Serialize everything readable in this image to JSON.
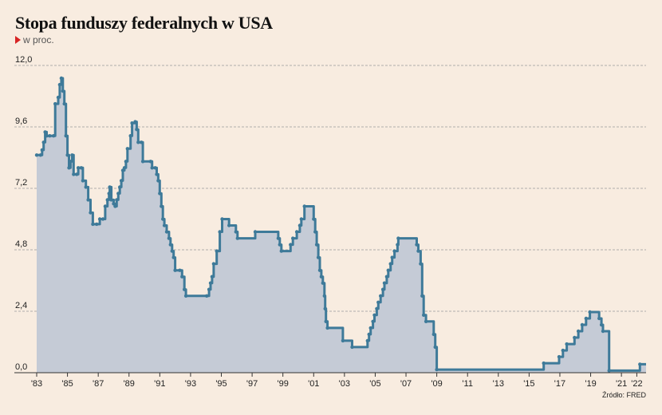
{
  "header": {
    "title": "Stopa funduszy federalnych w USA",
    "subtitle": "w proc."
  },
  "footer": {
    "source": "Źródło: FRED"
  },
  "colors": {
    "line": "#3e7a99",
    "fill": "#c5cbd6",
    "background": "#f8ece0",
    "marker": "#d72424",
    "grid": "#999999"
  },
  "chart_data": {
    "type": "area",
    "title": "Stopa funduszy federalnych w USA",
    "subtitle": "w proc.",
    "xlabel": "",
    "ylabel": "",
    "ylim": [
      0,
      12
    ],
    "xlim": [
      1983,
      2022.6
    ],
    "yticks": [
      "0,0",
      "2,4",
      "4,8",
      "7,2",
      "9,6",
      "12,0"
    ],
    "ytick_values": [
      0,
      2.4,
      4.8,
      7.2,
      9.6,
      12.0
    ],
    "xticks": [
      "'83",
      "'85",
      "'87",
      "'89",
      "'91",
      "'93",
      "'95",
      "'97",
      "'99",
      "'01",
      "'03",
      "'05",
      "'07",
      "'09",
      "'11",
      "'13",
      "'15",
      "'17",
      "'19",
      "'21",
      "'22"
    ],
    "xtick_values": [
      1983,
      1985,
      1987,
      1989,
      1991,
      1993,
      1995,
      1997,
      1999,
      2001,
      2003,
      2005,
      2007,
      2009,
      2011,
      2013,
      2015,
      2017,
      2019,
      2021,
      2022
    ],
    "grid": "horizontal dashed",
    "series": [
      {
        "points": [
          [
            1983.0,
            8.5
          ],
          [
            1983.25,
            8.5
          ],
          [
            1983.35,
            8.7
          ],
          [
            1983.45,
            9.0
          ],
          [
            1983.55,
            9.4
          ],
          [
            1983.65,
            9.25
          ],
          [
            1983.85,
            9.25
          ],
          [
            1984.1,
            9.25
          ],
          [
            1984.2,
            10.5
          ],
          [
            1984.4,
            10.75
          ],
          [
            1984.5,
            11.25
          ],
          [
            1984.6,
            11.5
          ],
          [
            1984.7,
            11.0
          ],
          [
            1984.8,
            10.5
          ],
          [
            1984.9,
            9.25
          ],
          [
            1985.0,
            8.5
          ],
          [
            1985.1,
            8.0
          ],
          [
            1985.2,
            8.25
          ],
          [
            1985.3,
            8.5
          ],
          [
            1985.4,
            7.75
          ],
          [
            1985.6,
            7.75
          ],
          [
            1985.7,
            8.0
          ],
          [
            1985.9,
            8.0
          ],
          [
            1986.0,
            7.5
          ],
          [
            1986.2,
            7.25
          ],
          [
            1986.35,
            6.75
          ],
          [
            1986.5,
            6.25
          ],
          [
            1986.65,
            5.8
          ],
          [
            1986.9,
            5.8
          ],
          [
            1987.1,
            6.0
          ],
          [
            1987.3,
            6.0
          ],
          [
            1987.45,
            6.5
          ],
          [
            1987.6,
            6.75
          ],
          [
            1987.7,
            7.0
          ],
          [
            1987.75,
            7.25
          ],
          [
            1987.85,
            6.75
          ],
          [
            1988.0,
            6.6
          ],
          [
            1988.1,
            6.5
          ],
          [
            1988.2,
            6.75
          ],
          [
            1988.3,
            7.0
          ],
          [
            1988.4,
            7.25
          ],
          [
            1988.5,
            7.5
          ],
          [
            1988.6,
            7.9
          ],
          [
            1988.7,
            8.0
          ],
          [
            1988.8,
            8.25
          ],
          [
            1988.9,
            8.75
          ],
          [
            1989.1,
            9.25
          ],
          [
            1989.2,
            9.75
          ],
          [
            1989.4,
            9.8
          ],
          [
            1989.5,
            9.5
          ],
          [
            1989.6,
            9.0
          ],
          [
            1989.8,
            9.0
          ],
          [
            1989.9,
            8.25
          ],
          [
            1990.4,
            8.25
          ],
          [
            1990.5,
            8.0
          ],
          [
            1990.7,
            8.0
          ],
          [
            1990.8,
            7.75
          ],
          [
            1990.9,
            7.5
          ],
          [
            1991.0,
            7.0
          ],
          [
            1991.1,
            6.5
          ],
          [
            1991.2,
            6.0
          ],
          [
            1991.3,
            5.75
          ],
          [
            1991.45,
            5.5
          ],
          [
            1991.6,
            5.25
          ],
          [
            1991.7,
            5.0
          ],
          [
            1991.8,
            4.75
          ],
          [
            1991.9,
            4.5
          ],
          [
            1992.0,
            4.0
          ],
          [
            1992.3,
            4.0
          ],
          [
            1992.45,
            3.75
          ],
          [
            1992.6,
            3.25
          ],
          [
            1992.7,
            3.0
          ],
          [
            1994.05,
            3.0
          ],
          [
            1994.2,
            3.25
          ],
          [
            1994.3,
            3.5
          ],
          [
            1994.4,
            3.75
          ],
          [
            1994.5,
            4.25
          ],
          [
            1994.7,
            4.75
          ],
          [
            1994.9,
            5.5
          ],
          [
            1995.05,
            6.0
          ],
          [
            1995.5,
            5.75
          ],
          [
            1995.95,
            5.5
          ],
          [
            1996.05,
            5.25
          ],
          [
            1997.2,
            5.5
          ],
          [
            1998.7,
            5.25
          ],
          [
            1998.8,
            5.0
          ],
          [
            1998.9,
            4.75
          ],
          [
            1999.5,
            5.0
          ],
          [
            1999.65,
            5.25
          ],
          [
            1999.9,
            5.5
          ],
          [
            2000.1,
            5.75
          ],
          [
            2000.2,
            6.0
          ],
          [
            2000.4,
            6.5
          ],
          [
            2001.0,
            6.0
          ],
          [
            2001.1,
            5.5
          ],
          [
            2001.2,
            5.0
          ],
          [
            2001.3,
            4.5
          ],
          [
            2001.4,
            4.0
          ],
          [
            2001.5,
            3.75
          ],
          [
            2001.6,
            3.5
          ],
          [
            2001.7,
            3.0
          ],
          [
            2001.75,
            2.5
          ],
          [
            2001.8,
            2.0
          ],
          [
            2001.9,
            1.75
          ],
          [
            2002.9,
            1.25
          ],
          [
            2003.5,
            1.0
          ],
          [
            2004.5,
            1.25
          ],
          [
            2004.6,
            1.5
          ],
          [
            2004.7,
            1.75
          ],
          [
            2004.85,
            2.0
          ],
          [
            2004.95,
            2.25
          ],
          [
            2005.1,
            2.5
          ],
          [
            2005.2,
            2.75
          ],
          [
            2005.35,
            3.0
          ],
          [
            2005.5,
            3.25
          ],
          [
            2005.6,
            3.5
          ],
          [
            2005.75,
            3.75
          ],
          [
            2005.85,
            4.0
          ],
          [
            2006.0,
            4.25
          ],
          [
            2006.1,
            4.5
          ],
          [
            2006.25,
            4.75
          ],
          [
            2006.45,
            5.0
          ],
          [
            2006.5,
            5.25
          ],
          [
            2007.7,
            5.0
          ],
          [
            2007.8,
            4.75
          ],
          [
            2007.95,
            4.25
          ],
          [
            2008.05,
            3.0
          ],
          [
            2008.15,
            2.25
          ],
          [
            2008.3,
            2.0
          ],
          [
            2008.8,
            1.5
          ],
          [
            2008.9,
            1.0
          ],
          [
            2009.0,
            0.12
          ],
          [
            2015.95,
            0.37
          ],
          [
            2016.95,
            0.62
          ],
          [
            2017.2,
            0.87
          ],
          [
            2017.45,
            1.12
          ],
          [
            2017.95,
            1.37
          ],
          [
            2018.2,
            1.62
          ],
          [
            2018.45,
            1.87
          ],
          [
            2018.7,
            2.12
          ],
          [
            2018.95,
            2.37
          ],
          [
            2019.55,
            2.12
          ],
          [
            2019.7,
            1.87
          ],
          [
            2019.8,
            1.62
          ],
          [
            2020.2,
            0.08
          ],
          [
            2022.2,
            0.33
          ]
        ]
      }
    ]
  }
}
